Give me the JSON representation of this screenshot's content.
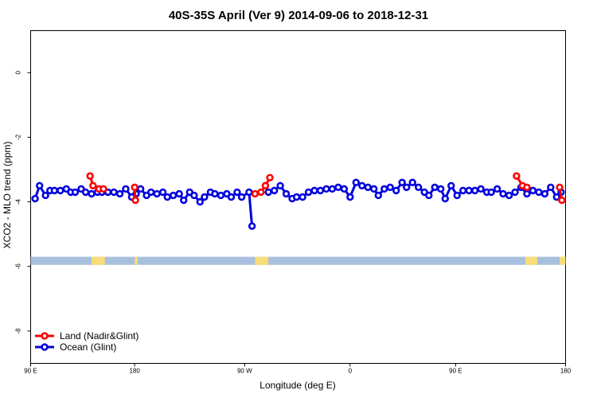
{
  "chart_data": {
    "type": "line",
    "title": "40S-35S April (Ver 9)   2014-09-06 to 2018-12-31",
    "xlabel": "Longitude (deg E)",
    "ylabel": "XCO2 - MLO trend (ppm)",
    "xlim": [
      90,
      450
    ],
    "ylim": [
      -9.0,
      1.3
    ],
    "x_ticks": [
      {
        "value": 90,
        "label": "90 E"
      },
      {
        "value": 160,
        "label": "180"
      },
      {
        "value": 234,
        "label": "90 W"
      },
      {
        "value": 305,
        "label": "0"
      },
      {
        "value": 376,
        "label": "90 E"
      },
      {
        "value": 450,
        "label": "180"
      }
    ],
    "y_ticks": [
      {
        "value": 0,
        "label": "0"
      },
      {
        "value": -2,
        "label": "-2"
      },
      {
        "value": -4,
        "label": "-4"
      },
      {
        "value": -6,
        "label": "-6"
      },
      {
        "value": -8,
        "label": "-8"
      }
    ],
    "land_band": {
      "y_top": -5.7,
      "y_bottom": -5.95,
      "color": "#a8bfdd",
      "land_color": "#f6dd7a",
      "land_x": [
        [
          131,
          140
        ],
        [
          160,
          162
        ],
        [
          241,
          250
        ],
        [
          423,
          431
        ],
        [
          446,
          450
        ]
      ]
    },
    "legend_position": "bottom-left",
    "series": [
      {
        "name": "Land (Nadir&Glint)",
        "color": "#ff0000",
        "segments": [
          [
            [
              130,
              -3.2
            ],
            [
              132,
              -3.5
            ],
            [
              136,
              -3.6
            ],
            [
              139,
              -3.6
            ]
          ],
          [
            [
              160,
              -3.55
            ],
            [
              160.5,
              -3.95
            ]
          ],
          [
            [
              241,
              -3.75
            ],
            [
              245,
              -3.7
            ],
            [
              248,
              -3.5
            ],
            [
              251,
              -3.25
            ]
          ],
          [
            [
              417,
              -3.2
            ],
            [
              421,
              -3.5
            ],
            [
              424,
              -3.55
            ]
          ],
          [
            [
              446,
              -3.55
            ],
            [
              447.5,
              -3.95
            ]
          ]
        ]
      },
      {
        "name": "Ocean (Glint)",
        "color": "#0000dd",
        "segments": [
          [
            [
              93,
              -3.9
            ],
            [
              96,
              -3.5
            ],
            [
              100,
              -3.8
            ],
            [
              103,
              -3.65
            ],
            [
              106,
              -3.65
            ],
            [
              110,
              -3.65
            ],
            [
              114,
              -3.6
            ],
            [
              117,
              -3.7
            ],
            [
              120,
              -3.7
            ],
            [
              124,
              -3.6
            ],
            [
              127,
              -3.7
            ],
            [
              131,
              -3.75
            ],
            [
              135,
              -3.7
            ],
            [
              138,
              -3.7
            ],
            [
              142,
              -3.7
            ],
            [
              146,
              -3.7
            ],
            [
              150,
              -3.75
            ],
            [
              154,
              -3.6
            ],
            [
              158,
              -3.85
            ],
            [
              161,
              -3.75
            ],
            [
              164,
              -3.6
            ],
            [
              168,
              -3.8
            ],
            [
              171,
              -3.7
            ],
            [
              175,
              -3.75
            ],
            [
              179,
              -3.7
            ],
            [
              182,
              -3.85
            ],
            [
              186,
              -3.8
            ],
            [
              190,
              -3.75
            ],
            [
              193,
              -3.95
            ],
            [
              197,
              -3.7
            ],
            [
              200,
              -3.8
            ],
            [
              204,
              -4.0
            ],
            [
              207,
              -3.85
            ],
            [
              211,
              -3.7
            ],
            [
              214,
              -3.75
            ],
            [
              218,
              -3.8
            ],
            [
              222,
              -3.75
            ],
            [
              225,
              -3.85
            ],
            [
              229,
              -3.7
            ],
            [
              232,
              -3.85
            ],
            [
              237,
              -3.7
            ],
            [
              239,
              -4.75
            ]
          ],
          [
            [
              248,
              -3.5
            ],
            [
              250,
              -3.7
            ],
            [
              254,
              -3.65
            ],
            [
              258,
              -3.5
            ],
            [
              262,
              -3.75
            ],
            [
              266,
              -3.9
            ],
            [
              269,
              -3.85
            ],
            [
              273,
              -3.85
            ],
            [
              277,
              -3.7
            ],
            [
              281,
              -3.65
            ],
            [
              285,
              -3.65
            ],
            [
              289,
              -3.6
            ],
            [
              293,
              -3.6
            ],
            [
              297,
              -3.55
            ],
            [
              301,
              -3.6
            ],
            [
              305,
              -3.85
            ],
            [
              309,
              -3.4
            ],
            [
              313,
              -3.5
            ],
            [
              317,
              -3.55
            ],
            [
              321,
              -3.6
            ],
            [
              324,
              -3.8
            ],
            [
              328,
              -3.6
            ],
            [
              332,
              -3.55
            ],
            [
              336,
              -3.65
            ],
            [
              340,
              -3.4
            ],
            [
              343,
              -3.55
            ],
            [
              347,
              -3.4
            ],
            [
              351,
              -3.55
            ],
            [
              355,
              -3.7
            ],
            [
              358,
              -3.8
            ],
            [
              362,
              -3.55
            ],
            [
              366,
              -3.6
            ],
            [
              369,
              -3.9
            ],
            [
              373,
              -3.5
            ],
            [
              377,
              -3.8
            ],
            [
              381,
              -3.65
            ],
            [
              385,
              -3.65
            ],
            [
              389,
              -3.65
            ],
            [
              393,
              -3.6
            ],
            [
              397,
              -3.7
            ],
            [
              400,
              -3.7
            ],
            [
              404,
              -3.6
            ],
            [
              408,
              -3.75
            ],
            [
              412,
              -3.8
            ],
            [
              416,
              -3.7
            ],
            [
              420,
              -3.55
            ],
            [
              424,
              -3.75
            ],
            [
              428,
              -3.65
            ],
            [
              432,
              -3.7
            ],
            [
              436,
              -3.75
            ],
            [
              440,
              -3.55
            ],
            [
              444,
              -3.85
            ],
            [
              447,
              -3.7
            ]
          ]
        ]
      }
    ]
  }
}
